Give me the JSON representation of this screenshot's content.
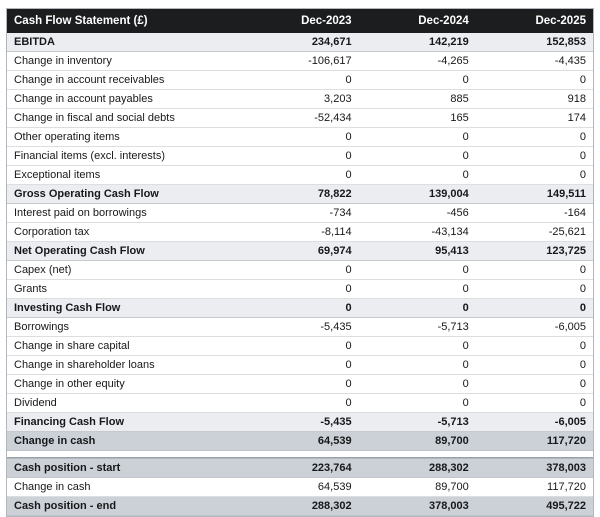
{
  "chart_data": {
    "type": "table",
    "title": "Cash Flow Statement (£)",
    "columns": [
      "Dec-2023",
      "Dec-2024",
      "Dec-2025"
    ],
    "rows": [
      {
        "label": "EBITDA",
        "values": [
          "234,671",
          "142,219",
          "152,853"
        ],
        "style": "section"
      },
      {
        "label": "Change in inventory",
        "values": [
          "-106,617",
          "-4,265",
          "-4,435"
        ],
        "style": "normal"
      },
      {
        "label": "Change in account receivables",
        "values": [
          "0",
          "0",
          "0"
        ],
        "style": "normal"
      },
      {
        "label": "Change in account payables",
        "values": [
          "3,203",
          "885",
          "918"
        ],
        "style": "normal"
      },
      {
        "label": "Change in fiscal and social debts",
        "values": [
          "-52,434",
          "165",
          "174"
        ],
        "style": "normal"
      },
      {
        "label": "Other operating items",
        "values": [
          "0",
          "0",
          "0"
        ],
        "style": "normal"
      },
      {
        "label": "Financial items (excl. interests)",
        "values": [
          "0",
          "0",
          "0"
        ],
        "style": "normal"
      },
      {
        "label": "Exceptional items",
        "values": [
          "0",
          "0",
          "0"
        ],
        "style": "normal"
      },
      {
        "label": "Gross Operating Cash Flow",
        "values": [
          "78,822",
          "139,004",
          "149,511"
        ],
        "style": "section"
      },
      {
        "label": "Interest paid on borrowings",
        "values": [
          "-734",
          "-456",
          "-164"
        ],
        "style": "normal"
      },
      {
        "label": "Corporation tax",
        "values": [
          "-8,114",
          "-43,134",
          "-25,621"
        ],
        "style": "normal"
      },
      {
        "label": "Net Operating Cash Flow",
        "values": [
          "69,974",
          "95,413",
          "123,725"
        ],
        "style": "section"
      },
      {
        "label": "Capex (net)",
        "values": [
          "0",
          "0",
          "0"
        ],
        "style": "normal"
      },
      {
        "label": "Grants",
        "values": [
          "0",
          "0",
          "0"
        ],
        "style": "normal"
      },
      {
        "label": "Investing Cash Flow",
        "values": [
          "0",
          "0",
          "0"
        ],
        "style": "section"
      },
      {
        "label": "Borrowings",
        "values": [
          "-5,435",
          "-5,713",
          "-6,005"
        ],
        "style": "normal"
      },
      {
        "label": "Change in share capital",
        "values": [
          "0",
          "0",
          "0"
        ],
        "style": "normal"
      },
      {
        "label": "Change in shareholder loans",
        "values": [
          "0",
          "0",
          "0"
        ],
        "style": "normal"
      },
      {
        "label": "Change in other equity",
        "values": [
          "0",
          "0",
          "0"
        ],
        "style": "normal"
      },
      {
        "label": "Dividend",
        "values": [
          "0",
          "0",
          "0"
        ],
        "style": "normal"
      },
      {
        "label": "Financing Cash Flow",
        "values": [
          "-5,435",
          "-5,713",
          "-6,005"
        ],
        "style": "section"
      },
      {
        "label": "Change in cash",
        "values": [
          "64,539",
          "89,700",
          "117,720"
        ],
        "style": "highlight"
      }
    ],
    "summary_rows": [
      {
        "label": "Cash position - start",
        "values": [
          "223,764",
          "288,302",
          "378,003"
        ],
        "style": "highlight"
      },
      {
        "label": "Change in cash",
        "values": [
          "64,539",
          "89,700",
          "117,720"
        ],
        "style": "normal"
      },
      {
        "label": "Cash position - end",
        "values": [
          "288,302",
          "378,003",
          "495,722"
        ],
        "style": "highlight"
      }
    ],
    "layout": {
      "header_bg": "#1c1d1f",
      "header_text_color": "#ffffff",
      "section_row_bg": "#ebedf0",
      "highlight_row_bg": "#ccd1d8",
      "normal_row_bg": "#ffffff",
      "outer_border_color": "#b3b7bd",
      "currency": "£"
    }
  }
}
